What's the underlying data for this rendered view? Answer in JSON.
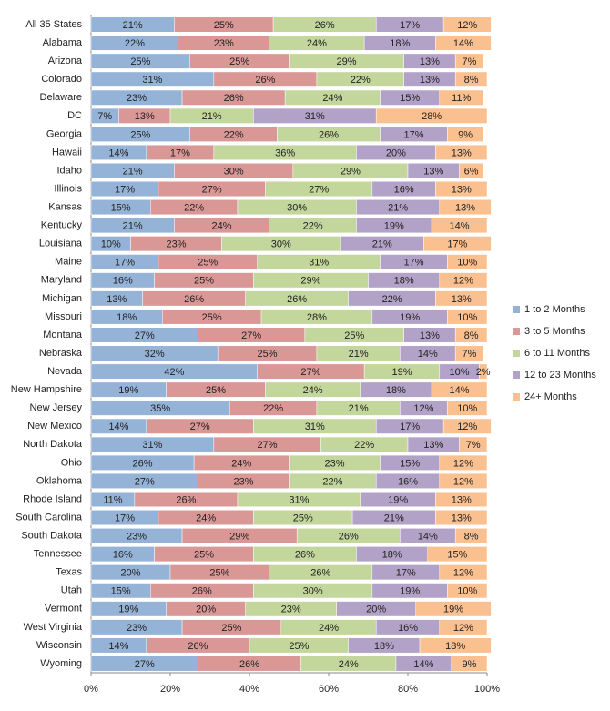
{
  "chart_data": {
    "type": "stacked-bar-horizontal",
    "categories": [
      "All 35 States",
      "Alabama",
      "Arizona",
      "Colorado",
      "Delaware",
      "DC",
      "Georgia",
      "Hawaii",
      "Idaho",
      "Illinois",
      "Kansas",
      "Kentucky",
      "Louisiana",
      "Maine",
      "Maryland",
      "Michigan",
      "Missouri",
      "Montana",
      "Nebraska",
      "Nevada",
      "New Hampshire",
      "New Jersey",
      "New Mexico",
      "North Dakota",
      "Ohio",
      "Oklahoma",
      "Rhode Island",
      "South Carolina",
      "South Dakota",
      "Tennessee",
      "Texas",
      "Utah",
      "Vermont",
      "West Virginia",
      "Wisconsin",
      "Wyoming"
    ],
    "series": [
      {
        "name": "1 to 2 Months",
        "color": "#95b3d7",
        "values": [
          21,
          22,
          25,
          31,
          23,
          7,
          25,
          14,
          21,
          17,
          15,
          21,
          10,
          17,
          16,
          13,
          18,
          27,
          32,
          42,
          19,
          35,
          14,
          31,
          26,
          27,
          11,
          17,
          23,
          16,
          20,
          15,
          19,
          23,
          14,
          27
        ],
        "value_labels": [
          "21%",
          "22%",
          "25%",
          "31%",
          "23%",
          "7%",
          "25%",
          "14%",
          "21%",
          "17%",
          "15%",
          "21%",
          "10%",
          "17%",
          "16%",
          "13%",
          "18%",
          "27%",
          "32%",
          "42%",
          "19%",
          "35%",
          "14%",
          "31%",
          "26%",
          "27%",
          "11%",
          "17%",
          "23%",
          "16%",
          "20%",
          "15%",
          "19%",
          "23%",
          "14%",
          "27%"
        ]
      },
      {
        "name": "3 to 5 Months",
        "color": "#d99795",
        "values": [
          25,
          23,
          25,
          26,
          26,
          13,
          22,
          17,
          30,
          27,
          22,
          24,
          23,
          25,
          25,
          26,
          25,
          27,
          25,
          27,
          25,
          22,
          27,
          27,
          24,
          23,
          26,
          24,
          29,
          25,
          25,
          26,
          20,
          25,
          26,
          26
        ],
        "value_labels": [
          "25%",
          "23%",
          "25%",
          "26%",
          "26%",
          "13%",
          "22%",
          "17%",
          "30%",
          "27%",
          "22%",
          "24%",
          "23%",
          "25%",
          "25%",
          "26%",
          "25%",
          "27%",
          "25%",
          "27%",
          "25%",
          "22%",
          "27%",
          "27%",
          "24%",
          "23%",
          "26%",
          "24%",
          "29%",
          "25%",
          "25%",
          "26%",
          "20%",
          "25%",
          "26%",
          "26%"
        ]
      },
      {
        "name": "6 to 11 Months",
        "color": "#c3d69b",
        "values": [
          26,
          24,
          29,
          22,
          24,
          21,
          26,
          36,
          29,
          27,
          30,
          22,
          30,
          31,
          29,
          26,
          28,
          25,
          21,
          19,
          24,
          21,
          31,
          22,
          23,
          22,
          31,
          25,
          26,
          26,
          26,
          30,
          23,
          24,
          25,
          24
        ],
        "value_labels": [
          "26%",
          "24%",
          "29%",
          "22%",
          "24%",
          "21%",
          "26%",
          "36%",
          "29%",
          "27%",
          "30%",
          "22%",
          "30%",
          "31%",
          "29%",
          "26%",
          "28%",
          "25%",
          "21%",
          "19%",
          "24%",
          "21%",
          "31%",
          "22%",
          "23%",
          "22%",
          "31%",
          "25%",
          "26%",
          "26%",
          "26%",
          "30%",
          "23%",
          "24%",
          "25%",
          "24%"
        ]
      },
      {
        "name": "12 to 23 Months",
        "color": "#b3a2c7",
        "values": [
          17,
          18,
          13,
          13,
          15,
          31,
          17,
          20,
          13,
          16,
          21,
          19,
          21,
          17,
          18,
          22,
          19,
          13,
          14,
          10,
          18,
          12,
          17,
          13,
          15,
          16,
          19,
          21,
          14,
          18,
          17,
          19,
          20,
          16,
          18,
          14
        ],
        "value_labels": [
          "17%",
          "18%",
          "13%",
          "13%",
          "15%",
          "31%",
          "17%",
          "20%",
          "13%",
          "16%",
          "21%",
          "19%",
          "21%",
          "17%",
          "18%",
          "22%",
          "19%",
          "13%",
          "14%",
          "10%",
          "18%",
          "12%",
          "17%",
          "13%",
          "15%",
          "16%",
          "19%",
          "21%",
          "14%",
          "18%",
          "17%",
          "19%",
          "20%",
          "16%",
          "18%",
          "14%"
        ]
      },
      {
        "name": "24+ Months",
        "color": "#fac090",
        "values": [
          12,
          14,
          7,
          8,
          11,
          28,
          9,
          13,
          6,
          13,
          13,
          14,
          17,
          10,
          12,
          13,
          10,
          8,
          7,
          2,
          14,
          10,
          12,
          7,
          12,
          12,
          13,
          13,
          8,
          15,
          12,
          10,
          19,
          12,
          18,
          9
        ],
        "value_labels": [
          "12%",
          "14%",
          "7%",
          "8%",
          "11%",
          "28%",
          "9%",
          "13%",
          "6%",
          "13%",
          "13%",
          "14%",
          "17%",
          "10%",
          "12%",
          "13%",
          "10%",
          "8%",
          "7%",
          "2%",
          "14%",
          "10%",
          "12%",
          "7%",
          "12%",
          "12%",
          "13%",
          "13%",
          "8%",
          "15%",
          "12%",
          "10%",
          "19%",
          "12%",
          "18%",
          "9%"
        ]
      }
    ],
    "xlim": [
      0,
      100
    ],
    "xticks": [
      {
        "value": 0,
        "label": "0%"
      },
      {
        "value": 20,
        "label": "20%"
      },
      {
        "value": 40,
        "label": "40%"
      },
      {
        "value": 60,
        "label": "60%"
      },
      {
        "value": 80,
        "label": "80%"
      },
      {
        "value": 100,
        "label": "100%"
      }
    ],
    "legend": "right"
  }
}
